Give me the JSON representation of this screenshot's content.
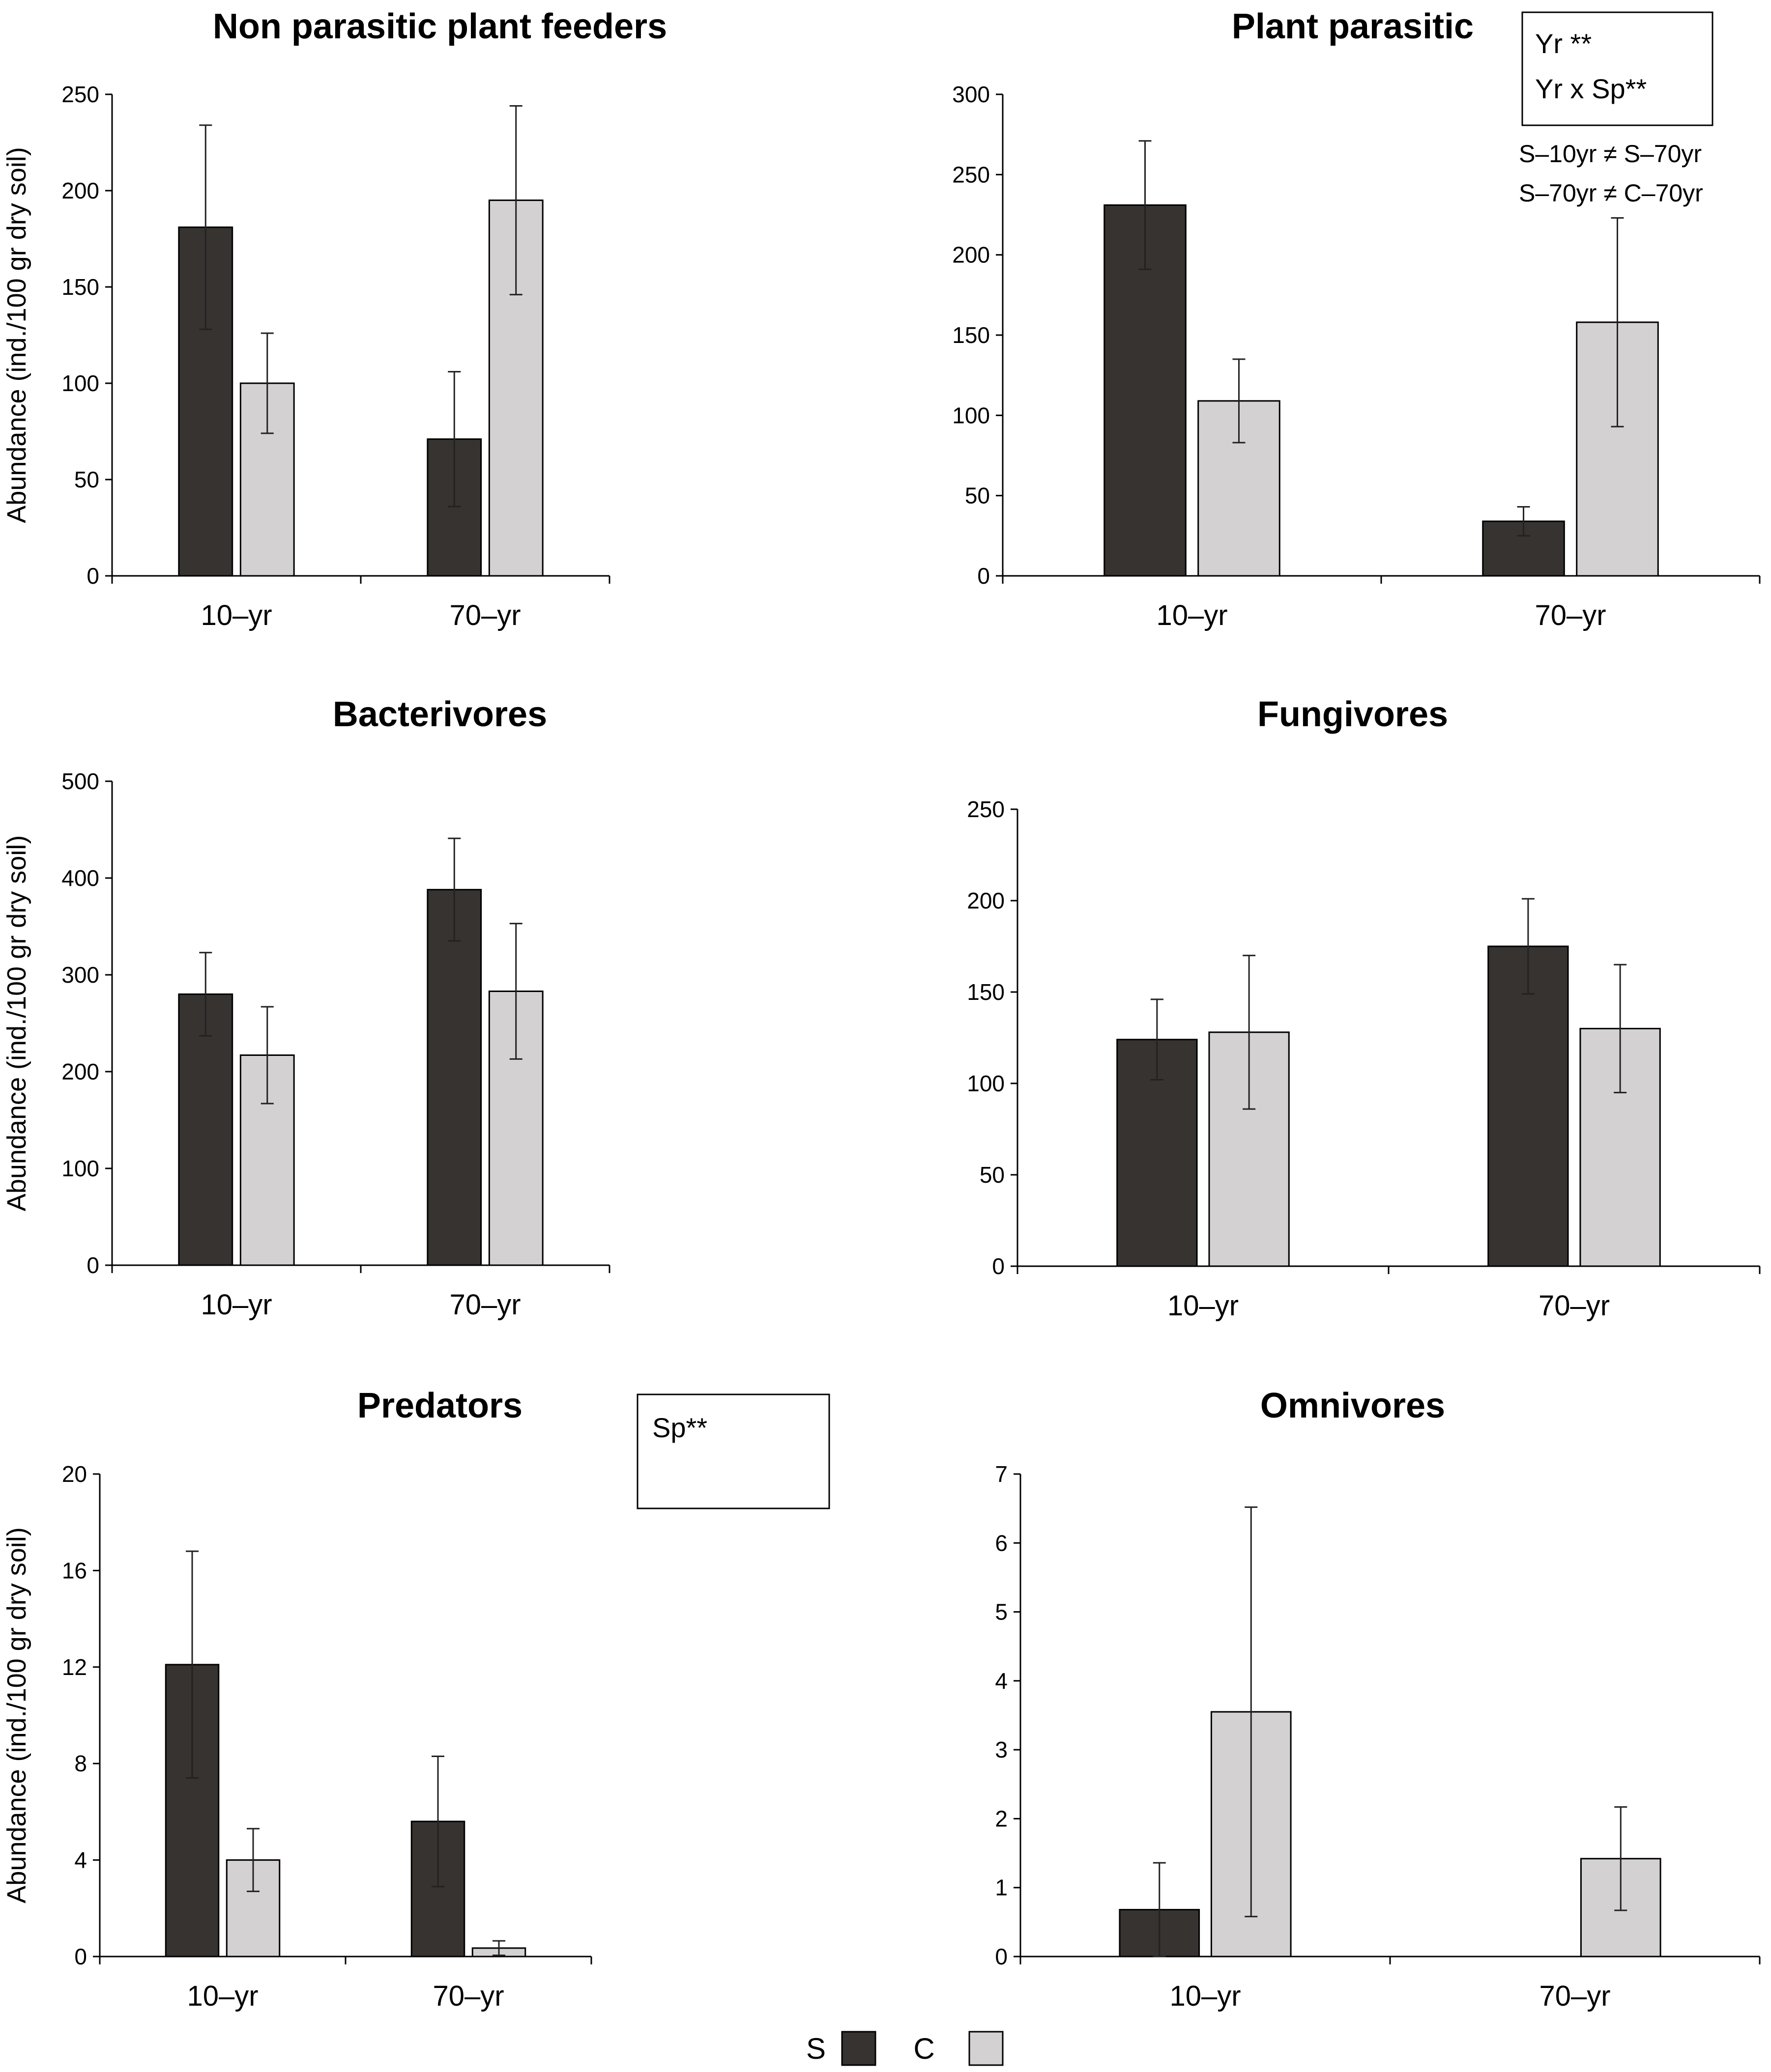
{
  "colors": {
    "S": "#363330",
    "C": "#d4d1d2"
  },
  "legend": [
    {
      "label": "S",
      "color": "#363330"
    },
    {
      "label": "C",
      "color": "#d4d1d2"
    }
  ],
  "chart_data": [
    {
      "type": "bar",
      "title": "Non parasitic plant feeders",
      "ylabel": "Abundance (ind./100 gr dry soil)",
      "categories": [
        "10–yr",
        "70–yr"
      ],
      "ylim": [
        0,
        250
      ],
      "yticks": [
        0,
        50,
        100,
        150,
        200,
        250
      ],
      "series": [
        {
          "name": "S",
          "values": [
            181,
            71
          ],
          "errors": [
            53,
            35
          ]
        },
        {
          "name": "C",
          "values": [
            100,
            195
          ],
          "errors": [
            26,
            49
          ]
        }
      ],
      "annotations": []
    },
    {
      "type": "bar",
      "title": "Plant parasitic",
      "ylabel": "",
      "categories": [
        "10–yr",
        "70–yr"
      ],
      "ylim": [
        0,
        300
      ],
      "yticks": [
        0,
        50,
        100,
        150,
        200,
        250,
        300
      ],
      "series": [
        {
          "name": "S",
          "values": [
            231,
            34
          ],
          "errors": [
            40,
            9
          ]
        },
        {
          "name": "C",
          "values": [
            109,
            158
          ],
          "errors": [
            26,
            65
          ]
        }
      ],
      "annotations": [
        "Yr **",
        "Yr x Sp**"
      ],
      "notes": [
        "S–10yr ≠ S–70yr",
        "S–70yr ≠ C–70yr"
      ]
    },
    {
      "type": "bar",
      "title": "Bacterivores",
      "ylabel": "Abundance (ind./100 gr dry soil)",
      "categories": [
        "10–yr",
        "70–yr"
      ],
      "ylim": [
        0,
        500
      ],
      "yticks": [
        0,
        100,
        200,
        300,
        400,
        500
      ],
      "series": [
        {
          "name": "S",
          "values": [
            280,
            388
          ],
          "errors": [
            43,
            53
          ]
        },
        {
          "name": "C",
          "values": [
            217,
            283
          ],
          "errors": [
            50,
            70
          ]
        }
      ],
      "annotations": []
    },
    {
      "type": "bar",
      "title": "Fungivores",
      "ylabel": "",
      "categories": [
        "10–yr",
        "70–yr"
      ],
      "ylim": [
        0,
        250
      ],
      "yticks": [
        0,
        50,
        100,
        150,
        200,
        250
      ],
      "series": [
        {
          "name": "S",
          "values": [
            124,
            175
          ],
          "errors": [
            22,
            26
          ]
        },
        {
          "name": "C",
          "values": [
            128,
            130
          ],
          "errors": [
            42,
            35
          ]
        }
      ],
      "annotations": []
    },
    {
      "type": "bar",
      "title": "Predators",
      "ylabel": "Abundance (ind./100 gr dry soil)",
      "categories": [
        "10–yr",
        "70–yr"
      ],
      "ylim": [
        0,
        20
      ],
      "yticks": [
        0,
        4,
        8,
        12,
        16,
        20
      ],
      "series": [
        {
          "name": "S",
          "values": [
            12.1,
            5.6
          ],
          "errors": [
            4.7,
            2.7
          ]
        },
        {
          "name": "C",
          "values": [
            4.0,
            0.35
          ],
          "errors": [
            1.3,
            0.3
          ]
        }
      ],
      "annotations": [
        "Sp**"
      ]
    },
    {
      "type": "bar",
      "title": "Omnivores",
      "ylabel": "",
      "categories": [
        "10–yr",
        "70–yr"
      ],
      "ylim": [
        0,
        7
      ],
      "yticks": [
        0,
        1,
        2,
        3,
        4,
        5,
        6,
        7
      ],
      "series": [
        {
          "name": "S",
          "values": [
            0.68,
            null
          ],
          "errors": [
            0.68,
            null
          ]
        },
        {
          "name": "C",
          "values": [
            3.55,
            1.42
          ],
          "errors": [
            2.97,
            0.75
          ]
        }
      ],
      "annotations": []
    }
  ]
}
